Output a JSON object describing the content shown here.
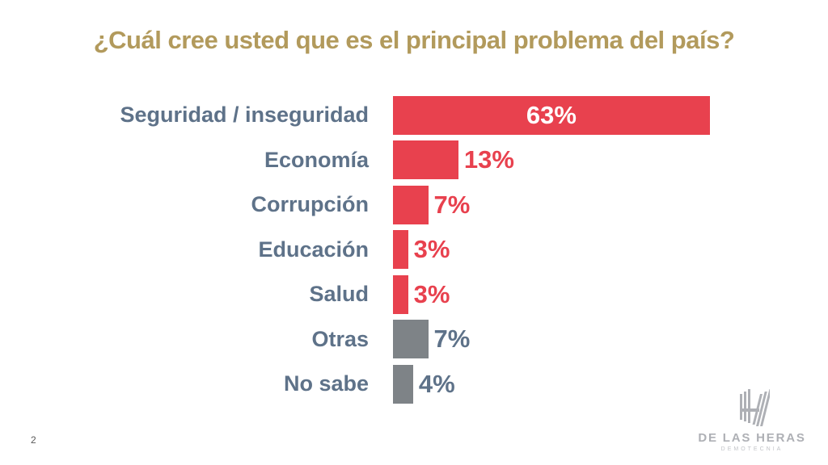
{
  "title": "¿Cuál cree usted que es el principal problema del país?",
  "page_number": "2",
  "colors": {
    "title_gold": "#B29A5C",
    "category_label": "#5E7289",
    "bar_red": "#E8414E",
    "bar_gray": "#7E8387",
    "value_inside": "#FFFFFF",
    "logo_gray": "#AEB0B5"
  },
  "chart_data": {
    "type": "bar",
    "orientation": "horizontal",
    "title": "¿Cuál cree usted que es el principal problema del país?",
    "categories": [
      "Seguridad / inseguridad",
      "Economía",
      "Corrupción",
      "Educación",
      "Salud",
      "Otras",
      "No sabe"
    ],
    "values": [
      63,
      13,
      7,
      3,
      3,
      7,
      4
    ],
    "value_labels": [
      "63%",
      "13%",
      "7%",
      "3%",
      "3%",
      "7%",
      "4%"
    ],
    "bar_colors": [
      "red",
      "red",
      "red",
      "red",
      "red",
      "gray",
      "gray"
    ],
    "value_label_inside": [
      true,
      false,
      false,
      false,
      false,
      false,
      false
    ],
    "unit": "%",
    "xlabel": "",
    "ylabel": "",
    "axis_visible": false,
    "grid": false,
    "legend": false
  },
  "logo": {
    "name": "DE LAS HERAS",
    "subtitle": "DEMOTECNIA"
  }
}
